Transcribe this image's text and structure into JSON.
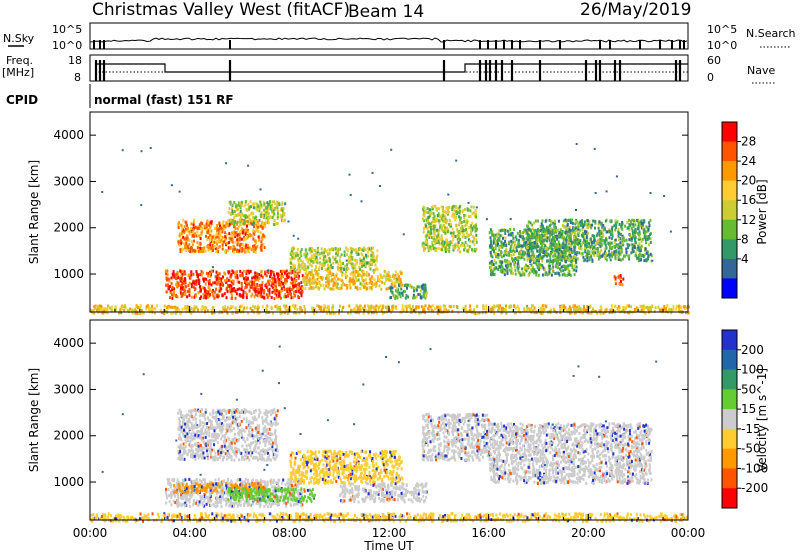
{
  "header": {
    "station": "Christmas Valley West (fitACF)",
    "beam": "Beam 14",
    "date": "26/May/2019"
  },
  "top_panels": {
    "nsky_label": "N.Sky",
    "nsky_ticks": [
      "10^5",
      "10^0"
    ],
    "nsearch_label": "N.Search",
    "freq_label_line1": "Freq.",
    "freq_label_line2": "[MHz]",
    "freq_ticks": [
      "18",
      "8"
    ],
    "nave_ticks": [
      "60",
      "0"
    ],
    "nave_label": "Nave",
    "cpid_label": "CPID",
    "cpid_text": "normal (fast) 151 RF"
  },
  "chart_data": [
    {
      "type": "heatmap",
      "name": "power",
      "ylabel": "Slant Range [km]",
      "ylim": [
        180,
        4500
      ],
      "yticks": [
        1000,
        2000,
        3000,
        4000
      ],
      "xlim": [
        0,
        24
      ],
      "xticks": [
        "00:00",
        "04:00",
        "08:00",
        "12:00",
        "16:00",
        "20:00",
        "00:00"
      ],
      "colorbar": {
        "label": "Power [dB]",
        "ticks": [
          "28",
          "24",
          "20",
          "16",
          "12",
          "8",
          "4"
        ],
        "colors": [
          "#ff0000",
          "#ff5500",
          "#ff9900",
          "#ffcc33",
          "#cccc33",
          "#66bb33",
          "#339966",
          "#336699",
          "#0000ff"
        ]
      },
      "regions": [
        {
          "t0": 3.0,
          "t1": 8.5,
          "r0": 500,
          "r1": 1100,
          "level": 28
        },
        {
          "t0": 3.5,
          "t1": 7.0,
          "r0": 1500,
          "r1": 2200,
          "level": 24
        },
        {
          "t0": 5.5,
          "t1": 7.8,
          "r0": 2100,
          "r1": 2600,
          "level": 16
        },
        {
          "t0": 8.0,
          "t1": 11.5,
          "r0": 1100,
          "r1": 1600,
          "level": 16
        },
        {
          "t0": 8.5,
          "t1": 12.5,
          "r0": 700,
          "r1": 1100,
          "level": 20
        },
        {
          "t0": 12.0,
          "t1": 13.5,
          "r0": 500,
          "r1": 800,
          "level": 12
        },
        {
          "t0": 13.3,
          "t1": 15.5,
          "r0": 1500,
          "r1": 2500,
          "level": 16
        },
        {
          "t0": 16.0,
          "t1": 19.5,
          "r0": 1000,
          "r1": 2000,
          "level": 12
        },
        {
          "t0": 17.5,
          "t1": 22.5,
          "r0": 1300,
          "r1": 2200,
          "level": 12
        },
        {
          "t0": 21.0,
          "t1": 21.4,
          "r0": 800,
          "r1": 1000,
          "level": 28
        },
        {
          "t0": 0.0,
          "t1": 24.0,
          "r0": 180,
          "r1": 350,
          "level": 20
        }
      ]
    },
    {
      "type": "heatmap",
      "name": "velocity",
      "ylabel": "Slant Range [km]",
      "ylim": [
        180,
        4500
      ],
      "yticks": [
        1000,
        2000,
        3000,
        4000
      ],
      "xlim": [
        0,
        24
      ],
      "xticks": [
        "00:00",
        "04:00",
        "08:00",
        "12:00",
        "16:00",
        "20:00",
        "00:00"
      ],
      "xlabel": "Time UT",
      "colorbar": {
        "label": "Velocity [m s^-1]",
        "ticks": [
          "200",
          "100",
          "50",
          "15",
          "-15",
          "-50",
          "-100",
          "-200"
        ],
        "colors": [
          "#2233cc",
          "#2266aa",
          "#339966",
          "#66cc33",
          "#cccccc",
          "#ffcc33",
          "#ff9900",
          "#ff5500",
          "#ff0000"
        ]
      },
      "regions": [
        {
          "t0": 3.0,
          "t1": 8.5,
          "r0": 500,
          "r1": 1100,
          "vel": "gray"
        },
        {
          "t0": 3.3,
          "t1": 7.0,
          "r0": 800,
          "r1": 1000,
          "vel": "orange"
        },
        {
          "t0": 5.5,
          "t1": 9.0,
          "r0": 600,
          "r1": 900,
          "vel": "green"
        },
        {
          "t0": 3.5,
          "t1": 7.5,
          "r0": 1500,
          "r1": 2600,
          "vel": "gray"
        },
        {
          "t0": 8.0,
          "t1": 12.5,
          "r0": 1000,
          "r1": 1700,
          "vel": "yellow"
        },
        {
          "t0": 10.0,
          "t1": 13.5,
          "r0": 600,
          "r1": 1000,
          "vel": "gray"
        },
        {
          "t0": 13.3,
          "t1": 16.0,
          "r0": 1500,
          "r1": 2500,
          "vel": "gray"
        },
        {
          "t0": 16.0,
          "t1": 22.5,
          "r0": 1000,
          "r1": 2300,
          "vel": "gray"
        },
        {
          "t0": 0.0,
          "t1": 24.0,
          "r0": 180,
          "r1": 350,
          "vel": "yellow"
        }
      ]
    }
  ]
}
